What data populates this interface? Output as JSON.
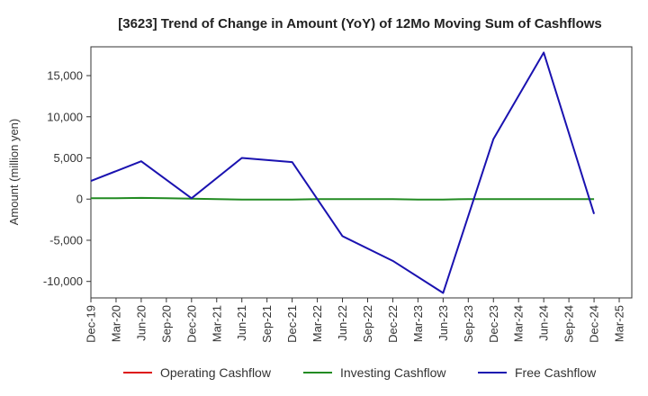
{
  "chart_data": {
    "type": "line",
    "title": "[3623]  Trend of Change in Amount (YoY) of 12Mo Moving Sum of Cashflows",
    "xlabel": "",
    "ylabel": "Amount (million yen)",
    "ylim": [
      -12000,
      18500
    ],
    "yticks": [
      -10000,
      -5000,
      0,
      5000,
      10000,
      15000
    ],
    "ytick_labels": [
      "-10,000",
      "-5,000",
      "0",
      "5,000",
      "10,000",
      "15,000"
    ],
    "categories": [
      "Dec-19",
      "Mar-20",
      "Jun-20",
      "Sep-20",
      "Dec-20",
      "Mar-21",
      "Jun-21",
      "Sep-21",
      "Dec-21",
      "Mar-22",
      "Jun-22",
      "Sep-22",
      "Dec-22",
      "Mar-23",
      "Jun-23",
      "Sep-23",
      "Dec-23",
      "Mar-24",
      "Jun-24",
      "Sep-24",
      "Dec-24",
      "Mar-25"
    ],
    "grid": true,
    "legend_position": "bottom",
    "series": [
      {
        "name": "Operating Cashflow",
        "color": "#dd1111",
        "values": [
          null,
          null,
          null,
          null,
          null,
          null,
          null,
          null,
          null,
          null,
          null,
          null,
          null,
          null,
          null,
          null,
          null,
          null,
          null,
          null,
          null,
          null
        ]
      },
      {
        "name": "Investing Cashflow",
        "color": "#228b22",
        "values": [
          100,
          100,
          150,
          100,
          50,
          0,
          -50,
          -50,
          -50,
          0,
          0,
          0,
          0,
          -50,
          -50,
          0,
          0,
          0,
          0,
          0,
          0,
          null
        ]
      },
      {
        "name": "Free Cashflow",
        "color": "#1a12b0",
        "values": [
          2200,
          null,
          4600,
          null,
          100,
          null,
          5000,
          null,
          4500,
          null,
          -4500,
          null,
          -7500,
          null,
          -11400,
          null,
          7300,
          null,
          17800,
          null,
          -1800,
          null
        ]
      }
    ]
  }
}
